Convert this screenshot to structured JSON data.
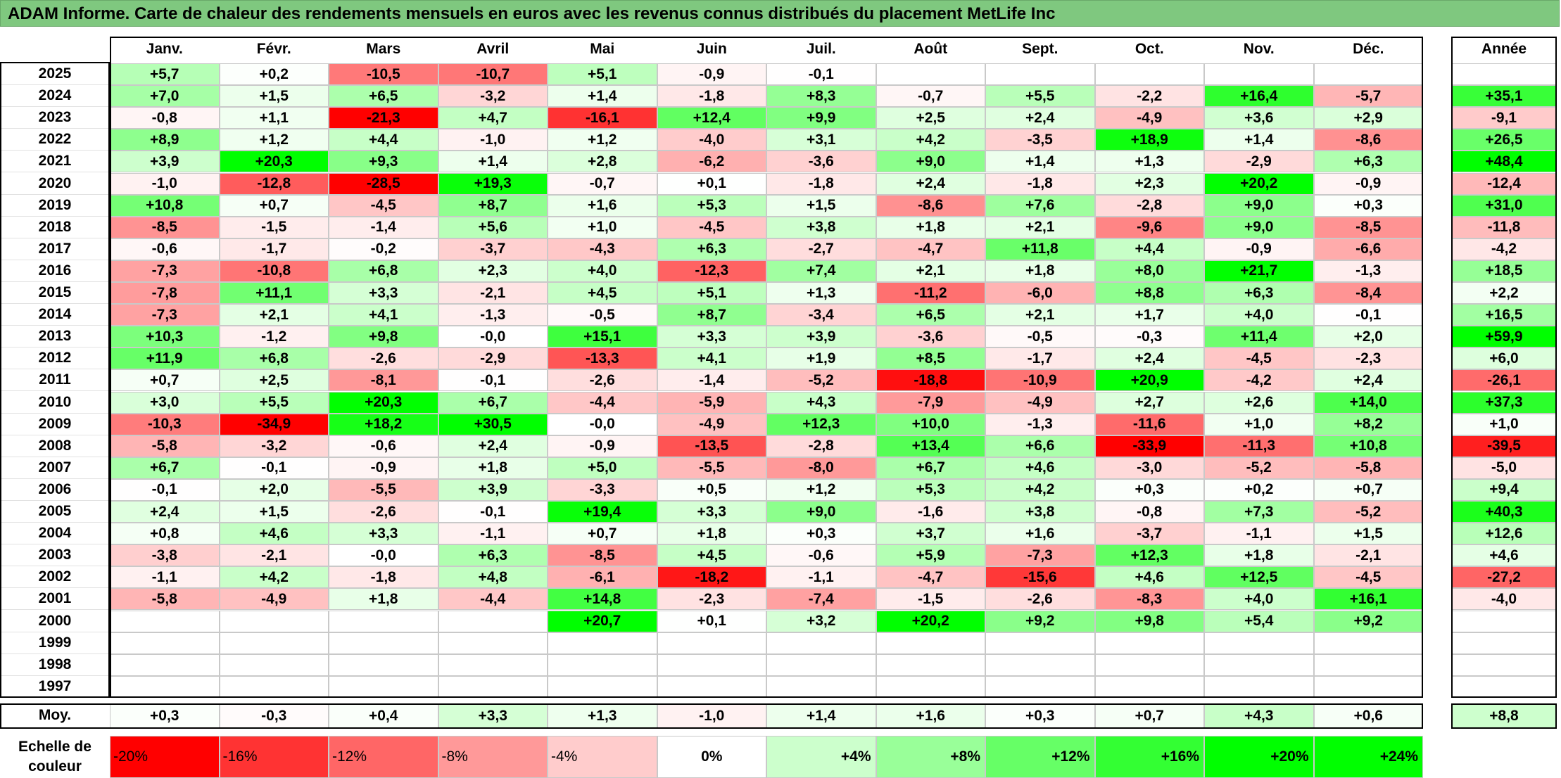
{
  "title": "ADAM Informe. Carte de chaleur des rendements mensuels en euros avec les revenus connus distribués du placement MetLife Inc",
  "chart_data": {
    "type": "heatmap",
    "title": "ADAM Informe. Carte de chaleur des rendements mensuels en euros avec les revenus connus distribués du placement MetLife Inc",
    "columns": [
      "Janv.",
      "Févr.",
      "Mars",
      "Avril",
      "Mai",
      "Juin",
      "Juil.",
      "Août",
      "Sept.",
      "Oct.",
      "Nov.",
      "Déc."
    ],
    "year_header": "Année",
    "rows": [
      {
        "year": "2025",
        "values": [
          "+5,7",
          "+0,2",
          "-10,5",
          "-10,7",
          "+5,1",
          "-0,9",
          "-0,1",
          "",
          "",
          "",
          "",
          ""
        ],
        "annual": ""
      },
      {
        "year": "2024",
        "values": [
          "+7,0",
          "+1,5",
          "+6,5",
          "-3,2",
          "+1,4",
          "-1,8",
          "+8,3",
          "-0,7",
          "+5,5",
          "-2,2",
          "+16,4",
          "-5,7"
        ],
        "annual": "+35,1"
      },
      {
        "year": "2023",
        "values": [
          "-0,8",
          "+1,1",
          "-21,3",
          "+4,7",
          "-16,1",
          "+12,4",
          "+9,9",
          "+2,5",
          "+2,4",
          "-4,9",
          "+3,6",
          "+2,9"
        ],
        "annual": "-9,1"
      },
      {
        "year": "2022",
        "values": [
          "+8,9",
          "+1,2",
          "+4,4",
          "-1,0",
          "+1,2",
          "-4,0",
          "+3,1",
          "+4,2",
          "-3,5",
          "+18,9",
          "+1,4",
          "-8,6"
        ],
        "annual": "+26,5"
      },
      {
        "year": "2021",
        "values": [
          "+3,9",
          "+20,3",
          "+9,3",
          "+1,4",
          "+2,8",
          "-6,2",
          "-3,6",
          "+9,0",
          "+1,4",
          "+1,3",
          "-2,9",
          "+6,3"
        ],
        "annual": "+48,4"
      },
      {
        "year": "2020",
        "values": [
          "-1,0",
          "-12,8",
          "-28,5",
          "+19,3",
          "-0,7",
          "+0,1",
          "-1,8",
          "+2,4",
          "-1,8",
          "+2,3",
          "+20,2",
          "-0,9"
        ],
        "annual": "-12,4"
      },
      {
        "year": "2019",
        "values": [
          "+10,8",
          "+0,7",
          "-4,5",
          "+8,7",
          "+1,6",
          "+5,3",
          "+1,5",
          "-8,6",
          "+7,6",
          "-2,8",
          "+9,0",
          "+0,3"
        ],
        "annual": "+31,0"
      },
      {
        "year": "2018",
        "values": [
          "-8,5",
          "-1,5",
          "-1,4",
          "+5,6",
          "+1,0",
          "-4,5",
          "+3,8",
          "+1,8",
          "+2,1",
          "-9,6",
          "+9,0",
          "-8,5"
        ],
        "annual": "-11,8"
      },
      {
        "year": "2017",
        "values": [
          "-0,6",
          "-1,7",
          "-0,2",
          "-3,7",
          "-4,3",
          "+6,3",
          "-2,7",
          "-4,7",
          "+11,8",
          "+4,4",
          "-0,9",
          "-6,6"
        ],
        "annual": "-4,2"
      },
      {
        "year": "2016",
        "values": [
          "-7,3",
          "-10,8",
          "+6,8",
          "+2,3",
          "+4,0",
          "-12,3",
          "+7,4",
          "+2,1",
          "+1,8",
          "+8,0",
          "+21,7",
          "-1,3"
        ],
        "annual": "+18,5"
      },
      {
        "year": "2015",
        "values": [
          "-7,8",
          "+11,1",
          "+3,3",
          "-2,1",
          "+4,5",
          "+5,1",
          "+1,3",
          "-11,2",
          "-6,0",
          "+8,8",
          "+6,3",
          "-8,4"
        ],
        "annual": "+2,2"
      },
      {
        "year": "2014",
        "values": [
          "-7,3",
          "+2,1",
          "+4,1",
          "-1,3",
          "-0,5",
          "+8,7",
          "-3,4",
          "+6,5",
          "+2,1",
          "+1,7",
          "+4,0",
          "-0,1"
        ],
        "annual": "+16,5"
      },
      {
        "year": "2013",
        "values": [
          "+10,3",
          "-1,2",
          "+9,8",
          "-0,0",
          "+15,1",
          "+3,3",
          "+3,9",
          "-3,6",
          "-0,5",
          "-0,3",
          "+11,4",
          "+2,0"
        ],
        "annual": "+59,9"
      },
      {
        "year": "2012",
        "values": [
          "+11,9",
          "+6,8",
          "-2,6",
          "-2,9",
          "-13,3",
          "+4,1",
          "+1,9",
          "+8,5",
          "-1,7",
          "+2,4",
          "-4,5",
          "-2,3"
        ],
        "annual": "+6,0"
      },
      {
        "year": "2011",
        "values": [
          "+0,7",
          "+2,5",
          "-8,1",
          "-0,1",
          "-2,6",
          "-1,4",
          "-5,2",
          "-18,8",
          "-10,9",
          "+20,9",
          "-4,2",
          "+2,4"
        ],
        "annual": "-26,1"
      },
      {
        "year": "2010",
        "values": [
          "+3,0",
          "+5,5",
          "+20,3",
          "+6,7",
          "-4,4",
          "-5,9",
          "+4,3",
          "-7,9",
          "-4,9",
          "+2,7",
          "+2,6",
          "+14,0"
        ],
        "annual": "+37,3"
      },
      {
        "year": "2009",
        "values": [
          "-10,3",
          "-34,9",
          "+18,2",
          "+30,5",
          "-0,0",
          "-4,9",
          "+12,3",
          "+10,0",
          "-1,3",
          "-11,6",
          "+1,0",
          "+8,2"
        ],
        "annual": "+1,0"
      },
      {
        "year": "2008",
        "values": [
          "-5,8",
          "-3,2",
          "-0,6",
          "+2,4",
          "-0,9",
          "-13,5",
          "-2,8",
          "+13,4",
          "+6,6",
          "-33,9",
          "-11,3",
          "+10,8"
        ],
        "annual": "-39,5"
      },
      {
        "year": "2007",
        "values": [
          "+6,7",
          "-0,1",
          "-0,9",
          "+1,8",
          "+5,0",
          "-5,5",
          "-8,0",
          "+6,7",
          "+4,6",
          "-3,0",
          "-5,2",
          "-5,8"
        ],
        "annual": "-5,0"
      },
      {
        "year": "2006",
        "values": [
          "-0,1",
          "+2,0",
          "-5,5",
          "+3,9",
          "-3,3",
          "+0,5",
          "+1,2",
          "+5,3",
          "+4,2",
          "+0,3",
          "+0,2",
          "+0,7"
        ],
        "annual": "+9,4"
      },
      {
        "year": "2005",
        "values": [
          "+2,4",
          "+1,5",
          "-2,6",
          "-0,1",
          "+19,4",
          "+3,3",
          "+9,0",
          "-1,6",
          "+3,8",
          "-0,8",
          "+7,3",
          "-5,2"
        ],
        "annual": "+40,3"
      },
      {
        "year": "2004",
        "values": [
          "+0,8",
          "+4,6",
          "+3,3",
          "-1,1",
          "+0,7",
          "+1,8",
          "+0,3",
          "+3,7",
          "+1,6",
          "-3,7",
          "-1,1",
          "+1,5"
        ],
        "annual": "+12,6"
      },
      {
        "year": "2003",
        "values": [
          "-3,8",
          "-2,1",
          "-0,0",
          "+6,3",
          "-8,5",
          "+4,5",
          "-0,6",
          "+5,9",
          "-7,3",
          "+12,3",
          "+1,8",
          "-2,1"
        ],
        "annual": "+4,6"
      },
      {
        "year": "2002",
        "values": [
          "-1,1",
          "+4,2",
          "-1,8",
          "+4,8",
          "-6,1",
          "-18,2",
          "-1,1",
          "-4,7",
          "-15,6",
          "+4,6",
          "+12,5",
          "-4,5"
        ],
        "annual": "-27,2"
      },
      {
        "year": "2001",
        "values": [
          "-5,8",
          "-4,9",
          "+1,8",
          "-4,4",
          "+14,8",
          "-2,3",
          "-7,4",
          "-1,5",
          "-2,6",
          "-8,3",
          "+4,0",
          "+16,1"
        ],
        "annual": "-4,0"
      },
      {
        "year": "2000",
        "values": [
          "",
          "",
          "",
          "",
          "+20,7",
          "+0,1",
          "+3,2",
          "+20,2",
          "+9,2",
          "+9,8",
          "+5,4",
          "+9,2"
        ],
        "annual": ""
      },
      {
        "year": "1999",
        "values": [
          "",
          "",
          "",
          "",
          "",
          "",
          "",
          "",
          "",
          "",
          "",
          ""
        ],
        "annual": ""
      },
      {
        "year": "1998",
        "values": [
          "",
          "",
          "",
          "",
          "",
          "",
          "",
          "",
          "",
          "",
          "",
          ""
        ],
        "annual": ""
      },
      {
        "year": "1997",
        "values": [
          "",
          "",
          "",
          "",
          "",
          "",
          "",
          "",
          "",
          "",
          "",
          ""
        ],
        "annual": ""
      }
    ],
    "average": {
      "label": "Moy.",
      "values": [
        "+0,3",
        "-0,3",
        "+0,4",
        "+3,3",
        "+1,3",
        "-1,0",
        "+1,4",
        "+1,6",
        "+0,3",
        "+0,7",
        "+4,3",
        "+0,6"
      ],
      "annual": "+8,8"
    },
    "color_scale": {
      "label": "Echelle de couleur",
      "steps": [
        "-20%",
        "-16%",
        "-12%",
        "-8%",
        "-4%",
        "0%",
        "+4%",
        "+8%",
        "+12%",
        "+16%",
        "+20%",
        "+24%"
      ],
      "negative_color": "#ff0000",
      "neutral_color": "#ffffff",
      "positive_color": "#00ff00"
    }
  }
}
